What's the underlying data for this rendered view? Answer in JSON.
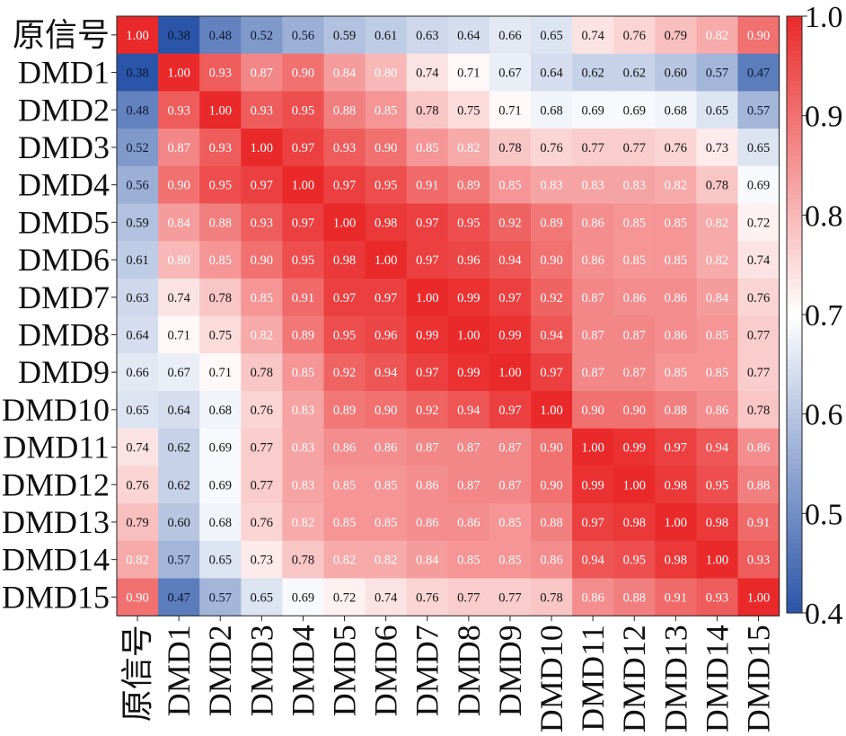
{
  "chart_data": {
    "type": "heatmap",
    "title": "",
    "xlabel": "",
    "ylabel": "",
    "rows": [
      "原信号",
      "DMD1",
      "DMD2",
      "DMD3",
      "DMD4",
      "DMD5",
      "DMD6",
      "DMD7",
      "DMD8",
      "DMD9",
      "DMD10",
      "DMD11",
      "DMD12",
      "DMD13",
      "DMD14",
      "DMD15"
    ],
    "columns": [
      "原信号",
      "DMD1",
      "DMD2",
      "DMD3",
      "DMD4",
      "DMD5",
      "DMD6",
      "DMD7",
      "DMD8",
      "DMD9",
      "DMD10",
      "DMD11",
      "DMD12",
      "DMD13",
      "DMD14",
      "DMD15"
    ],
    "values": [
      [
        1.0,
        0.38,
        0.48,
        0.52,
        0.56,
        0.59,
        0.61,
        0.63,
        0.64,
        0.66,
        0.65,
        0.74,
        0.76,
        0.79,
        0.82,
        0.9
      ],
      [
        0.38,
        1.0,
        0.93,
        0.87,
        0.9,
        0.84,
        0.8,
        0.74,
        0.71,
        0.67,
        0.64,
        0.62,
        0.62,
        0.6,
        0.57,
        0.47
      ],
      [
        0.48,
        0.93,
        1.0,
        0.93,
        0.95,
        0.88,
        0.85,
        0.78,
        0.75,
        0.71,
        0.68,
        0.69,
        0.69,
        0.68,
        0.65,
        0.57
      ],
      [
        0.52,
        0.87,
        0.93,
        1.0,
        0.97,
        0.93,
        0.9,
        0.85,
        0.82,
        0.78,
        0.76,
        0.77,
        0.77,
        0.76,
        0.73,
        0.65
      ],
      [
        0.56,
        0.9,
        0.95,
        0.97,
        1.0,
        0.97,
        0.95,
        0.91,
        0.89,
        0.85,
        0.83,
        0.83,
        0.83,
        0.82,
        0.78,
        0.69
      ],
      [
        0.59,
        0.84,
        0.88,
        0.93,
        0.97,
        1.0,
        0.98,
        0.97,
        0.95,
        0.92,
        0.89,
        0.86,
        0.85,
        0.85,
        0.82,
        0.72
      ],
      [
        0.61,
        0.8,
        0.85,
        0.9,
        0.95,
        0.98,
        1.0,
        0.97,
        0.96,
        0.94,
        0.9,
        0.86,
        0.85,
        0.85,
        0.82,
        0.74
      ],
      [
        0.63,
        0.74,
        0.78,
        0.85,
        0.91,
        0.97,
        0.97,
        1.0,
        0.99,
        0.97,
        0.92,
        0.87,
        0.86,
        0.86,
        0.84,
        0.76
      ],
      [
        0.64,
        0.71,
        0.75,
        0.82,
        0.89,
        0.95,
        0.96,
        0.99,
        1.0,
        0.99,
        0.94,
        0.87,
        0.87,
        0.86,
        0.85,
        0.77
      ],
      [
        0.66,
        0.67,
        0.71,
        0.78,
        0.85,
        0.92,
        0.94,
        0.97,
        0.99,
        1.0,
        0.97,
        0.87,
        0.87,
        0.85,
        0.85,
        0.77
      ],
      [
        0.65,
        0.64,
        0.68,
        0.76,
        0.83,
        0.89,
        0.9,
        0.92,
        0.94,
        0.97,
        1.0,
        0.9,
        0.9,
        0.88,
        0.86,
        0.78
      ],
      [
        0.74,
        0.62,
        0.69,
        0.77,
        0.83,
        0.86,
        0.86,
        0.87,
        0.87,
        0.87,
        0.9,
        1.0,
        0.99,
        0.97,
        0.94,
        0.86
      ],
      [
        0.76,
        0.62,
        0.69,
        0.77,
        0.83,
        0.85,
        0.85,
        0.86,
        0.87,
        0.87,
        0.9,
        0.99,
        1.0,
        0.98,
        0.95,
        0.88
      ],
      [
        0.79,
        0.6,
        0.68,
        0.76,
        0.82,
        0.85,
        0.85,
        0.86,
        0.86,
        0.85,
        0.88,
        0.97,
        0.98,
        1.0,
        0.98,
        0.91
      ],
      [
        0.82,
        0.57,
        0.65,
        0.73,
        0.78,
        0.82,
        0.82,
        0.84,
        0.85,
        0.85,
        0.86,
        0.94,
        0.95,
        0.98,
        1.0,
        0.93
      ],
      [
        0.9,
        0.47,
        0.57,
        0.65,
        0.69,
        0.72,
        0.74,
        0.76,
        0.77,
        0.77,
        0.78,
        0.86,
        0.88,
        0.91,
        0.93,
        1.0
      ]
    ],
    "value_format_decimals": 2,
    "colorbar": {
      "range": [
        0.4,
        1.0
      ],
      "ticks": [
        0.4,
        0.5,
        0.6,
        0.7,
        0.8,
        0.9,
        1.0
      ],
      "tick_labels": [
        "0.4",
        "0.5",
        "0.6",
        "0.7",
        "0.8",
        "0.9",
        "1.0"
      ],
      "placement": "right"
    },
    "colormap": {
      "low": "#2b55a8",
      "mid": "#ffffff",
      "high": "#ea2a2a",
      "mid_value": 0.7
    },
    "grid": false,
    "legend": "none"
  }
}
